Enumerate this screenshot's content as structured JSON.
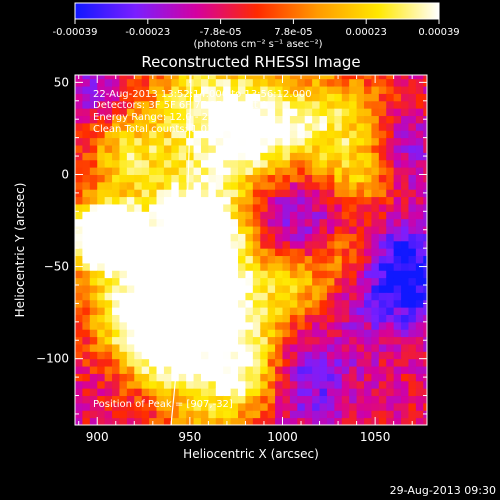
{
  "colorbar": {
    "tick_labels": [
      "-0.00039",
      "-0.00023",
      "-7.8e-05",
      "7.8e-05",
      "0.00023",
      "0.00039"
    ],
    "units_label": "(photons cm⁻² s⁻¹ asec⁻²)",
    "colors": [
      "#1018ff",
      "#7a1fff",
      "#d400a0",
      "#ff2a00",
      "#ff9a00",
      "#ffe800",
      "#ffffff"
    ]
  },
  "title": "Reconstructed RHESSI Image",
  "annotations": {
    "time_range": "22-Aug-2013 13:52:14.000 to 13:56:12.000",
    "detectors": "Detectors: 3F 5F 6F 7F 8F 9F, Att 0",
    "energy": "Energy Range: 12.0 - 25.0 keV",
    "clean": "Clean     Total counts: 1.03E+04",
    "peak": "Position of Peak = [907,-32]"
  },
  "footer_timestamp": "29-Aug-2013 09:30",
  "chart_data": {
    "type": "heatmap",
    "title": "Reconstructed RHESSI Image",
    "xlabel": "Heliocentric X (arcsec)",
    "ylabel": "Heliocentric Y (arcsec)",
    "xlim": [
      888,
      1078
    ],
    "ylim": [
      -136,
      54
    ],
    "x_ticks": [
      900,
      950,
      1000,
      1050
    ],
    "y_ticks": [
      50,
      0,
      -50,
      -100
    ],
    "x_tick_labels": [
      "900",
      "950",
      "1000",
      "1050"
    ],
    "y_tick_labels": [
      "50",
      "0",
      "−50",
      "−100"
    ],
    "value_range": [
      -0.00039,
      0.00039
    ],
    "peak_position": [
      907,
      -32
    ],
    "grid_res_arcsec": 4
  }
}
